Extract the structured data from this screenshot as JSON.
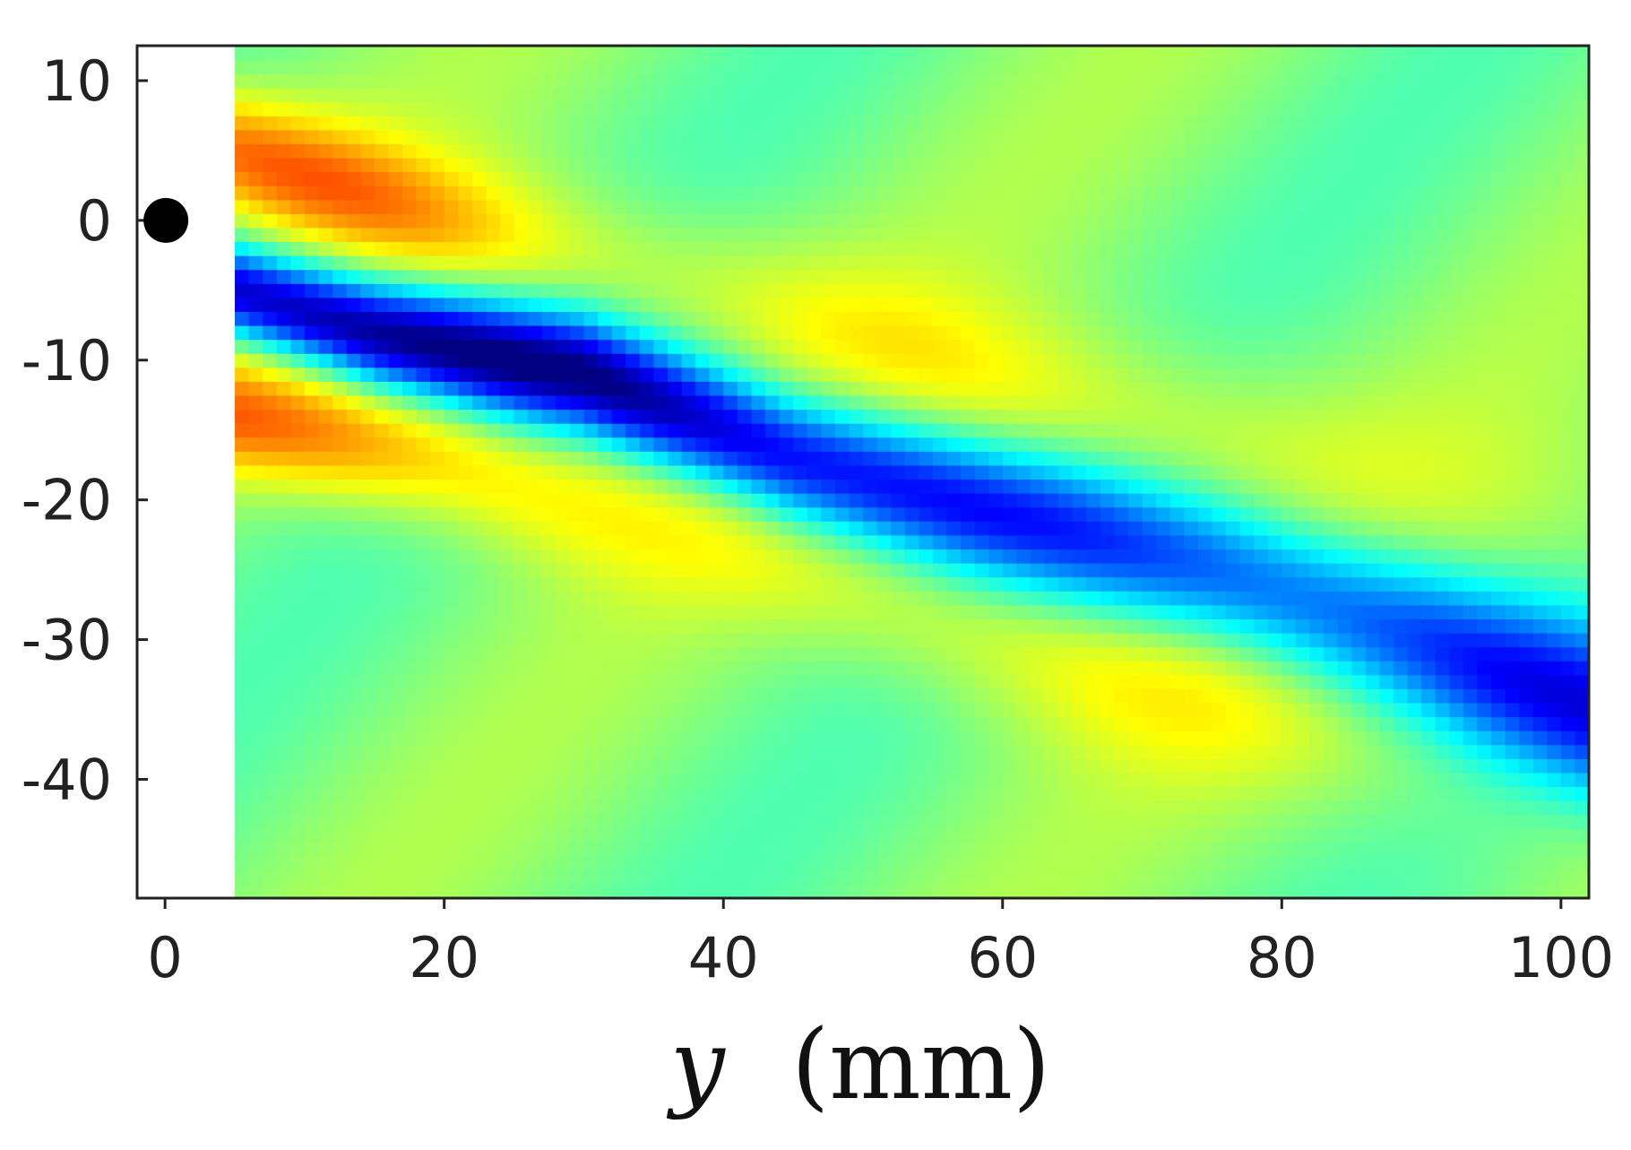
{
  "chart_data": {
    "type": "heatmap",
    "title": "",
    "xlabel_var": "y",
    "xlabel_unit": "(mm)",
    "ylabel": "",
    "xlim": [
      -2,
      102
    ],
    "ylim": [
      -48.5,
      12.5
    ],
    "x_ticks": [
      0,
      20,
      40,
      60,
      80,
      100
    ],
    "x_tick_labels": [
      "0",
      "20",
      "40",
      "60",
      "80",
      "100"
    ],
    "y_ticks": [
      10,
      0,
      -10,
      -20,
      -30,
      -40
    ],
    "y_tick_labels": [
      "10",
      "0",
      "-10",
      "-20",
      "-30",
      "-40"
    ],
    "data_x_range": [
      5,
      102
    ],
    "colormap": "jet",
    "value_range": [
      -1,
      1
    ],
    "marker": {
      "x": 0,
      "y": 0,
      "color": "#000000"
    },
    "features": [
      {
        "kind": "trough",
        "description": "negative band (blue)",
        "path": [
          [
            5,
            -5
          ],
          [
            15,
            -8
          ],
          [
            30,
            -11
          ],
          [
            45,
            -17
          ],
          [
            60,
            -21
          ],
          [
            75,
            -25
          ],
          [
            90,
            -30
          ],
          [
            102,
            -35
          ]
        ]
      },
      {
        "kind": "crest",
        "description": "positive band above trough (yellow/orange)",
        "path": [
          [
            5,
            5
          ],
          [
            20,
            0
          ],
          [
            40,
            -5
          ],
          [
            60,
            -12
          ],
          [
            80,
            -17
          ],
          [
            102,
            -22
          ]
        ]
      },
      {
        "kind": "crest",
        "description": "positive band below trough (yellow/orange)",
        "path": [
          [
            5,
            -14
          ],
          [
            20,
            -17
          ],
          [
            40,
            -23
          ],
          [
            57,
            -29
          ],
          [
            75,
            -34
          ],
          [
            102,
            -40
          ]
        ]
      }
    ]
  }
}
